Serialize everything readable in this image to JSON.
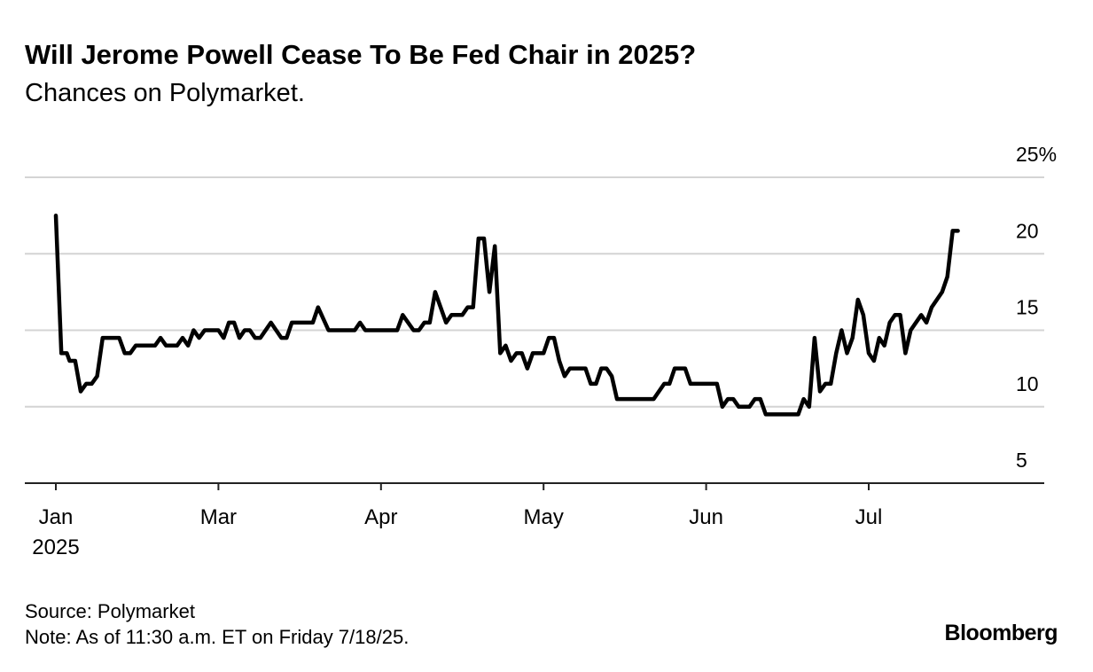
{
  "chart_data": {
    "type": "line",
    "title": "Will Jerome Powell Cease To Be Fed Chair in 2025?",
    "subtitle": "Chances on Polymarket.",
    "source": "Source: Polymarket",
    "note": "Note: As of 11:30 a.m. ET on Friday 7/18/25.",
    "brand": "Bloomberg",
    "x": [
      "2025-01-01",
      "2025-01-03",
      "2025-01-05",
      "2025-01-06",
      "2025-01-08",
      "2025-01-10",
      "2025-01-12",
      "2025-01-14",
      "2025-01-16",
      "2025-01-18",
      "2025-01-24",
      "2025-01-26",
      "2025-01-28",
      "2025-01-30",
      "2025-02-06",
      "2025-02-08",
      "2025-02-10",
      "2025-02-14",
      "2025-02-16",
      "2025-02-18",
      "2025-02-20",
      "2025-02-22",
      "2025-02-24",
      "2025-03-01",
      "2025-03-02",
      "2025-03-03",
      "2025-03-04",
      "2025-03-05",
      "2025-03-06",
      "2025-03-07",
      "2025-03-08",
      "2025-03-09",
      "2025-03-11",
      "2025-03-13",
      "2025-03-14",
      "2025-03-15",
      "2025-03-19",
      "2025-03-20",
      "2025-03-22",
      "2025-03-27",
      "2025-03-28",
      "2025-03-29",
      "2025-04-04",
      "2025-04-05",
      "2025-04-07",
      "2025-04-08",
      "2025-04-09",
      "2025-04-10",
      "2025-04-11",
      "2025-04-13",
      "2025-04-14",
      "2025-04-16",
      "2025-04-17",
      "2025-04-18",
      "2025-04-19",
      "2025-04-20",
      "2025-04-21",
      "2025-04-22",
      "2025-04-23",
      "2025-04-24",
      "2025-04-25",
      "2025-04-26",
      "2025-04-27",
      "2025-04-28",
      "2025-04-29",
      "2025-05-01",
      "2025-05-02",
      "2025-05-03",
      "2025-05-04",
      "2025-05-05",
      "2025-05-06",
      "2025-05-09",
      "2025-05-10",
      "2025-05-11",
      "2025-05-12",
      "2025-05-13",
      "2025-05-14",
      "2025-05-15",
      "2025-05-22",
      "2025-05-24",
      "2025-05-25",
      "2025-05-26",
      "2025-05-28",
      "2025-05-29",
      "2025-06-03",
      "2025-06-04",
      "2025-06-05",
      "2025-06-06",
      "2025-06-07",
      "2025-06-09",
      "2025-06-10",
      "2025-06-11",
      "2025-06-12",
      "2025-06-18",
      "2025-06-19",
      "2025-06-20",
      "2025-06-21",
      "2025-06-22",
      "2025-06-23",
      "2025-06-24",
      "2025-06-25",
      "2025-06-26",
      "2025-06-27",
      "2025-06-28",
      "2025-06-29",
      "2025-06-30",
      "2025-07-01",
      "2025-07-02",
      "2025-07-03",
      "2025-07-04",
      "2025-07-05",
      "2025-07-06",
      "2025-07-07",
      "2025-07-08",
      "2025-07-09",
      "2025-07-11",
      "2025-07-12",
      "2025-07-13",
      "2025-07-15",
      "2025-07-16",
      "2025-07-17",
      "2025-07-18"
    ],
    "series": [
      {
        "color": "#000000",
        "values": [
          22.5,
          13.5,
          13.5,
          13,
          13,
          11,
          11.5,
          11.5,
          12,
          14.5,
          14.5,
          13.5,
          13.5,
          14,
          14,
          14.5,
          14,
          14,
          14.5,
          14,
          15,
          14.5,
          15,
          15,
          14.5,
          15.5,
          15.5,
          14.5,
          15,
          15,
          14.5,
          14.5,
          15.5,
          14.5,
          14.5,
          15.5,
          15.5,
          16.5,
          15,
          15,
          15.5,
          15,
          15,
          16,
          15,
          15,
          15.5,
          15.5,
          17.5,
          15.5,
          16,
          16,
          16.5,
          16.5,
          21,
          21,
          17.5,
          20.5,
          13.5,
          14,
          13,
          13.5,
          13.5,
          12.5,
          13.5,
          13.5,
          14.5,
          14.5,
          13,
          12,
          12.5,
          12.5,
          11.5,
          11.5,
          12.5,
          12.5,
          12,
          10.5,
          10.5,
          11.5,
          11.5,
          12.5,
          12.5,
          11.5,
          11.5,
          10,
          10.5,
          10.5,
          10,
          10,
          10.5,
          10.5,
          9.5,
          9.5,
          10.5,
          10,
          14.5,
          11,
          11.5,
          11.5,
          13.5,
          15,
          13.5,
          14.5,
          17,
          16,
          13.5,
          13,
          14.5,
          14,
          15.5,
          16,
          16,
          13.5,
          15,
          16,
          15.5,
          16.5,
          17.5,
          18.5,
          21.5,
          21.5
        ]
      }
    ],
    "xlim": [
      "2025-01-01",
      "2025-08-01"
    ],
    "xticks": [
      {
        "value": "2025-01-01",
        "label": "Jan\n2025"
      },
      {
        "value": "2025-03-01",
        "label": "Mar"
      },
      {
        "value": "2025-04-01",
        "label": "Apr"
      },
      {
        "value": "2025-05-01",
        "label": "May"
      },
      {
        "value": "2025-06-01",
        "label": "Jun"
      },
      {
        "value": "2025-07-01",
        "label": "Jul"
      }
    ],
    "ylim": [
      5,
      25
    ],
    "yticks": [
      5,
      10,
      15,
      20,
      {
        "value": 25,
        "label": "25%"
      }
    ],
    "grid": true
  }
}
